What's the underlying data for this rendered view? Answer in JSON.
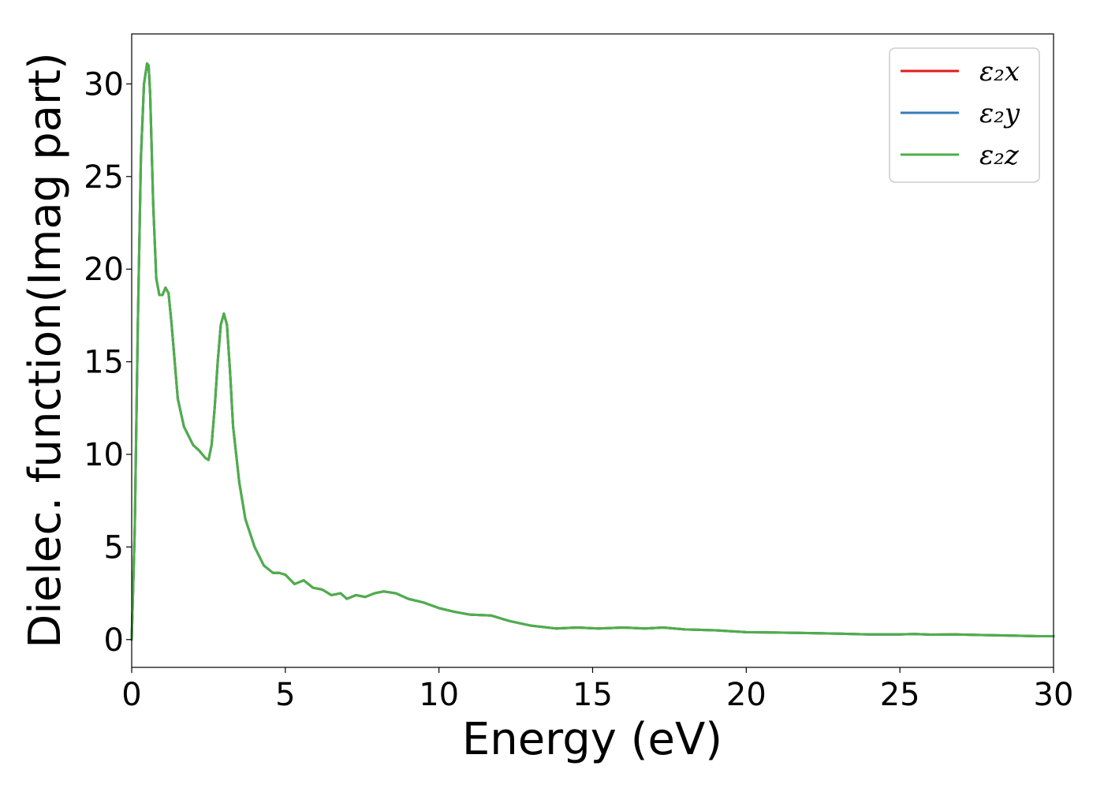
{
  "chart_data": {
    "type": "line",
    "title": "",
    "xlabel": "Energy (eV)",
    "ylabel": "Dielec. function(Imag part)",
    "xlim": [
      0,
      30
    ],
    "ylim": [
      -1.5,
      32.7
    ],
    "xticks": [
      0,
      5,
      10,
      15,
      20,
      25,
      30
    ],
    "yticks": [
      0,
      5,
      10,
      15,
      20,
      25,
      30
    ],
    "grid": false,
    "legend_position": "top-right",
    "series": [
      {
        "name": "ε₂x",
        "color": "#e41a1c",
        "x": [
          0,
          0.1,
          0.2,
          0.3,
          0.4,
          0.5,
          0.55,
          0.6,
          0.7,
          0.8,
          0.9,
          1.0,
          1.1,
          1.2,
          1.3,
          1.5,
          1.7,
          2.0,
          2.2,
          2.4,
          2.5,
          2.6,
          2.7,
          2.8,
          2.9,
          3.0,
          3.1,
          3.2,
          3.3,
          3.5,
          3.7,
          4.0,
          4.3,
          4.6,
          4.8,
          5.0,
          5.3,
          5.6,
          5.9,
          6.2,
          6.5,
          6.8,
          7.0,
          7.3,
          7.6,
          7.9,
          8.2,
          8.6,
          9.0,
          9.5,
          10.0,
          10.5,
          11.0,
          11.7,
          12.3,
          13.0,
          13.8,
          14.5,
          15.2,
          16.0,
          16.7,
          17.3,
          18.0,
          19.0,
          20.0,
          21.0,
          22.0,
          23.0,
          24.0,
          25.0,
          25.5,
          26.0,
          26.8,
          27.5,
          28.5,
          29.5,
          30.0
        ],
        "y": [
          0,
          6.0,
          17.0,
          26.0,
          30.0,
          31.1,
          31.0,
          29.5,
          23.5,
          19.5,
          18.6,
          18.6,
          19.0,
          18.7,
          17.0,
          13.0,
          11.5,
          10.5,
          10.2,
          9.8,
          9.7,
          10.5,
          12.5,
          15.0,
          17.0,
          17.6,
          17.0,
          14.5,
          11.5,
          8.5,
          6.5,
          5.0,
          4.0,
          3.6,
          3.6,
          3.5,
          3.0,
          3.2,
          2.8,
          2.7,
          2.4,
          2.5,
          2.2,
          2.4,
          2.3,
          2.5,
          2.6,
          2.5,
          2.2,
          2.0,
          1.7,
          1.5,
          1.35,
          1.3,
          1.0,
          0.75,
          0.6,
          0.65,
          0.6,
          0.65,
          0.6,
          0.65,
          0.55,
          0.5,
          0.4,
          0.38,
          0.35,
          0.32,
          0.28,
          0.28,
          0.3,
          0.27,
          0.28,
          0.25,
          0.22,
          0.18,
          0.18
        ]
      },
      {
        "name": "ε₂y",
        "color": "#377eb8",
        "x": [
          0,
          0.1,
          0.2,
          0.3,
          0.4,
          0.5,
          0.55,
          0.6,
          0.7,
          0.8,
          0.9,
          1.0,
          1.1,
          1.2,
          1.3,
          1.5,
          1.7,
          2.0,
          2.2,
          2.4,
          2.5,
          2.6,
          2.7,
          2.8,
          2.9,
          3.0,
          3.1,
          3.2,
          3.3,
          3.5,
          3.7,
          4.0,
          4.3,
          4.6,
          4.8,
          5.0,
          5.3,
          5.6,
          5.9,
          6.2,
          6.5,
          6.8,
          7.0,
          7.3,
          7.6,
          7.9,
          8.2,
          8.6,
          9.0,
          9.5,
          10.0,
          10.5,
          11.0,
          11.7,
          12.3,
          13.0,
          13.8,
          14.5,
          15.2,
          16.0,
          16.7,
          17.3,
          18.0,
          19.0,
          20.0,
          21.0,
          22.0,
          23.0,
          24.0,
          25.0,
          25.5,
          26.0,
          26.8,
          27.5,
          28.5,
          29.5,
          30.0
        ],
        "y": [
          0,
          6.0,
          17.0,
          26.0,
          30.0,
          31.1,
          31.0,
          29.5,
          23.5,
          19.5,
          18.6,
          18.6,
          19.0,
          18.7,
          17.0,
          13.0,
          11.5,
          10.5,
          10.2,
          9.8,
          9.7,
          10.5,
          12.5,
          15.0,
          17.0,
          17.6,
          17.0,
          14.5,
          11.5,
          8.5,
          6.5,
          5.0,
          4.0,
          3.6,
          3.6,
          3.5,
          3.0,
          3.2,
          2.8,
          2.7,
          2.4,
          2.5,
          2.2,
          2.4,
          2.3,
          2.5,
          2.6,
          2.5,
          2.2,
          2.0,
          1.7,
          1.5,
          1.35,
          1.3,
          1.0,
          0.75,
          0.6,
          0.65,
          0.6,
          0.65,
          0.6,
          0.65,
          0.55,
          0.5,
          0.4,
          0.38,
          0.35,
          0.32,
          0.28,
          0.28,
          0.3,
          0.27,
          0.28,
          0.25,
          0.22,
          0.18,
          0.18
        ]
      },
      {
        "name": "ε₂z",
        "color": "#4daf4a",
        "x": [
          0,
          0.1,
          0.2,
          0.3,
          0.4,
          0.5,
          0.55,
          0.6,
          0.7,
          0.8,
          0.9,
          1.0,
          1.1,
          1.2,
          1.3,
          1.5,
          1.7,
          2.0,
          2.2,
          2.4,
          2.5,
          2.6,
          2.7,
          2.8,
          2.9,
          3.0,
          3.1,
          3.2,
          3.3,
          3.5,
          3.7,
          4.0,
          4.3,
          4.6,
          4.8,
          5.0,
          5.3,
          5.6,
          5.9,
          6.2,
          6.5,
          6.8,
          7.0,
          7.3,
          7.6,
          7.9,
          8.2,
          8.6,
          9.0,
          9.5,
          10.0,
          10.5,
          11.0,
          11.7,
          12.3,
          13.0,
          13.8,
          14.5,
          15.2,
          16.0,
          16.7,
          17.3,
          18.0,
          19.0,
          20.0,
          21.0,
          22.0,
          23.0,
          24.0,
          25.0,
          25.5,
          26.0,
          26.8,
          27.5,
          28.5,
          29.5,
          30.0
        ],
        "y": [
          0,
          6.0,
          17.0,
          26.0,
          30.0,
          31.1,
          31.0,
          29.5,
          23.5,
          19.5,
          18.6,
          18.6,
          19.0,
          18.7,
          17.0,
          13.0,
          11.5,
          10.5,
          10.2,
          9.8,
          9.7,
          10.5,
          12.5,
          15.0,
          17.0,
          17.6,
          17.0,
          14.5,
          11.5,
          8.5,
          6.5,
          5.0,
          4.0,
          3.6,
          3.6,
          3.5,
          3.0,
          3.2,
          2.8,
          2.7,
          2.4,
          2.5,
          2.2,
          2.4,
          2.3,
          2.5,
          2.6,
          2.5,
          2.2,
          2.0,
          1.7,
          1.5,
          1.35,
          1.3,
          1.0,
          0.75,
          0.6,
          0.65,
          0.6,
          0.65,
          0.6,
          0.65,
          0.55,
          0.5,
          0.4,
          0.38,
          0.35,
          0.32,
          0.28,
          0.28,
          0.3,
          0.27,
          0.28,
          0.25,
          0.22,
          0.18,
          0.18
        ]
      }
    ]
  }
}
